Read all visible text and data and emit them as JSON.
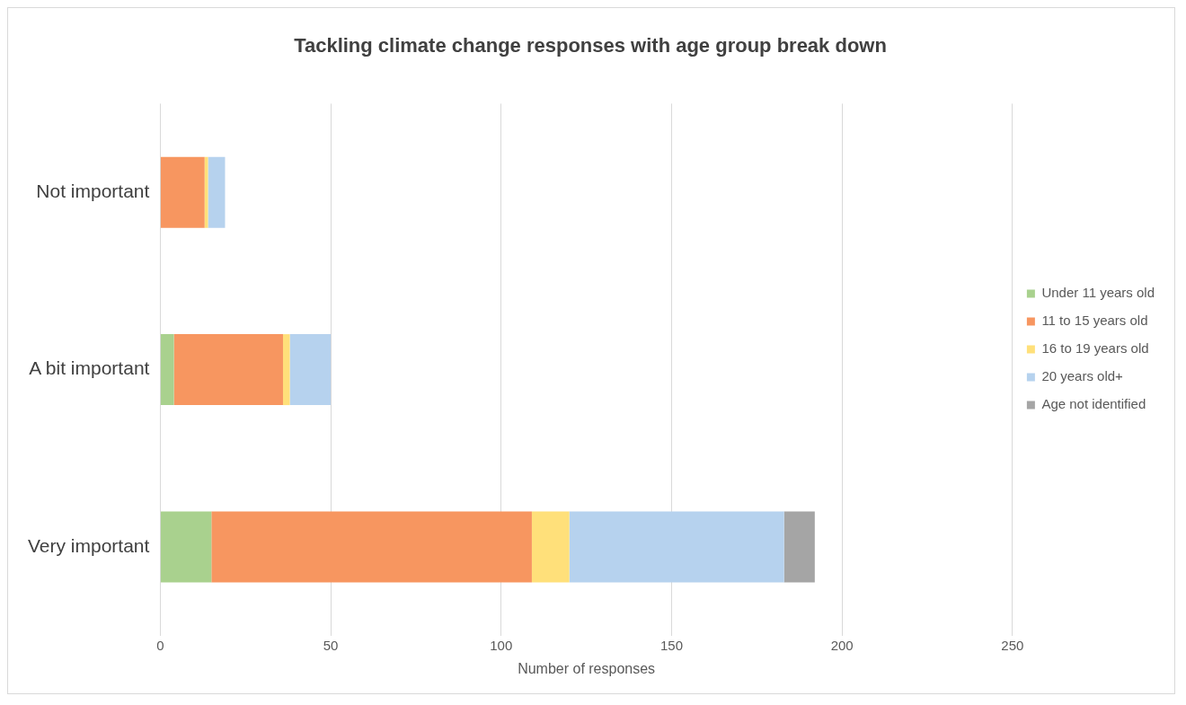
{
  "chart_data": {
    "type": "bar",
    "orientation": "horizontal",
    "stacked": true,
    "title": "Tackling climate change responses with age group break down",
    "xlabel": "Number of responses",
    "categories": [
      "Not important",
      "A bit important",
      "Very important"
    ],
    "series": [
      {
        "name": "Under 11 years old",
        "color": "#a9d18e",
        "values": [
          0,
          4,
          15
        ]
      },
      {
        "name": "11 to 15 years old",
        "color": "#f79660",
        "values": [
          13,
          32,
          94
        ]
      },
      {
        "name": "16 to 19 years old",
        "color": "#ffe07a",
        "values": [
          1,
          2,
          11
        ]
      },
      {
        "name": "20 years old+",
        "color": "#b6d2ee",
        "values": [
          5,
          12,
          63
        ]
      },
      {
        "name": "Age not identified",
        "color": "#a5a5a5",
        "values": [
          0,
          0,
          9
        ]
      }
    ],
    "xlim": [
      0,
      250
    ],
    "xticks": [
      0,
      50,
      100,
      150,
      200,
      250
    ],
    "grid": "x",
    "legend": "right"
  }
}
